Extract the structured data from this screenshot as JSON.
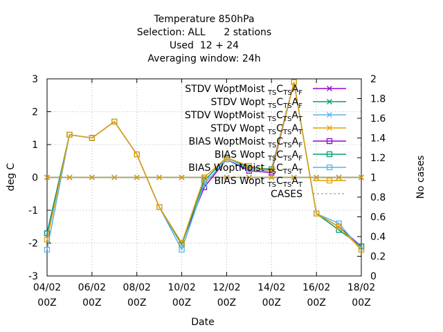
{
  "chart_data": {
    "type": "line",
    "title_lines": [
      "Temperature 850hPa",
      "Selection: ALL      2 stations",
      "Used  12 + 24",
      "Averaging window: 24h"
    ],
    "xlabel": "Date",
    "ylabel": "deg C",
    "y2label": "No cases",
    "ylim": [
      -3,
      3
    ],
    "y2lim": [
      0,
      2
    ],
    "xlim": [
      "04/02 00Z",
      "18/02 00Z"
    ],
    "grid": true,
    "legend_position": "top-right",
    "x_ticks": [
      {
        "l1": "04/02",
        "l2": "00Z"
      },
      {
        "l1": "06/02",
        "l2": "00Z"
      },
      {
        "l1": "08/02",
        "l2": "00Z"
      },
      {
        "l1": "10/02",
        "l2": "00Z"
      },
      {
        "l1": "12/02",
        "l2": "00Z"
      },
      {
        "l1": "14/02",
        "l2": "00Z"
      },
      {
        "l1": "16/02",
        "l2": "00Z"
      },
      {
        "l1": "18/02",
        "l2": "00Z"
      }
    ],
    "y_ticks": [
      "-3",
      "-2",
      "-1",
      "0",
      "1",
      "2",
      "3"
    ],
    "y2_ticks": [
      "0",
      "0.2",
      "0.4",
      "0.6",
      "0.8",
      "1",
      "1.2",
      "1.4",
      "1.6",
      "1.8",
      "2"
    ],
    "x_days": [
      0,
      1,
      2,
      3,
      4,
      5,
      6,
      7,
      8,
      9,
      10,
      11,
      12,
      13,
      14
    ],
    "series": [
      {
        "legend": [
          "STDV WoptMoist",
          "TS",
          "C",
          "TS",
          "A",
          "F"
        ],
        "color": "#9400d3",
        "marker": "x",
        "axis": "y",
        "values": [
          0,
          0,
          0,
          0,
          0,
          0,
          0,
          0,
          0,
          0,
          0,
          0,
          0,
          0,
          0
        ]
      },
      {
        "legend": [
          "STDV Wopt",
          "TS",
          "C",
          "TS",
          "A",
          "F"
        ],
        "color": "#009e73",
        "marker": "x",
        "axis": "y",
        "values": [
          0,
          0,
          0,
          0,
          0,
          0,
          0,
          0,
          0,
          0,
          0,
          0,
          0,
          0,
          0
        ]
      },
      {
        "legend": [
          "STDV WoptMoist",
          "TS",
          "C",
          "TS",
          "A",
          "T"
        ],
        "color": "#56b4e9",
        "marker": "x",
        "axis": "y",
        "values": [
          0,
          0,
          0,
          0,
          0,
          0,
          0,
          0,
          0,
          0,
          0,
          0,
          0,
          0,
          0
        ]
      },
      {
        "legend": [
          "STDV Wopt",
          "TS",
          "C",
          "TS",
          "A",
          "T"
        ],
        "color": "#e69f00",
        "marker": "x",
        "axis": "y",
        "values": [
          0,
          0,
          0,
          0,
          0,
          0,
          0,
          0,
          0,
          0,
          0,
          0,
          0,
          0,
          0
        ]
      },
      {
        "legend": [
          "BIAS WoptMoist",
          "TS",
          "C",
          "TS",
          "A",
          "F"
        ],
        "color": "#9400d3",
        "marker": "square",
        "axis": "y",
        "values": [
          -1.7,
          1.3,
          1.2,
          1.7,
          0.7,
          -0.9,
          -2.0,
          -0.3,
          0.55,
          0.2,
          0.15,
          2.9,
          -1.1,
          -1.5,
          -2.1
        ]
      },
      {
        "legend": [
          "BIAS Wopt",
          "TS",
          "C",
          "TS",
          "A",
          "F"
        ],
        "color": "#009e73",
        "marker": "square",
        "axis": "y",
        "values": [
          -1.7,
          1.3,
          1.2,
          1.7,
          0.7,
          -0.9,
          -2.05,
          -0.1,
          0.6,
          0.3,
          0.25,
          2.9,
          -1.1,
          -1.6,
          -2.1
        ]
      },
      {
        "legend": [
          "BIAS WoptMoist",
          "TS",
          "C",
          "TS",
          "A",
          "T"
        ],
        "color": "#56b4e9",
        "marker": "square",
        "axis": "y",
        "values": [
          -2.2,
          1.3,
          1.2,
          1.7,
          0.7,
          -0.9,
          -2.2,
          -0.2,
          0.55,
          0.25,
          0.2,
          2.9,
          -1.1,
          -1.4,
          -2.2
        ]
      },
      {
        "legend": [
          "BIAS Wopt",
          "TS",
          "C",
          "TS",
          "A",
          "T"
        ],
        "color": "#e69f00",
        "marker": "square",
        "axis": "y",
        "values": [
          -1.9,
          1.3,
          1.2,
          1.7,
          0.7,
          -0.9,
          -2.0,
          0.0,
          0.6,
          0.35,
          0.2,
          2.9,
          -1.1,
          -1.5,
          -2.2
        ]
      },
      {
        "legend": [
          "CASES"
        ],
        "color": "#a0a0a0",
        "marker": "none",
        "dashed": true,
        "axis": "y2",
        "values": [
          1,
          1,
          1,
          1,
          1,
          1,
          1,
          1,
          1,
          1,
          1,
          1,
          1,
          1,
          1
        ]
      }
    ]
  }
}
